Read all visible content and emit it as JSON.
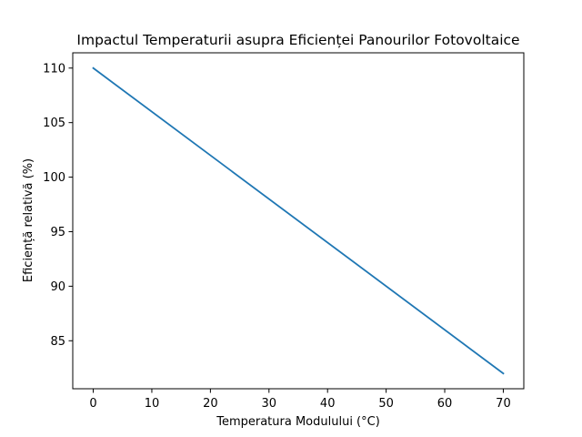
{
  "chart_data": {
    "type": "line",
    "title": "Impactul Temperaturii asupra Eficienței Panourilor Fotovoltaice",
    "xlabel": "Temperatura Modulului (°C)",
    "ylabel": "Eficiență relativă (%)",
    "x": [
      0,
      70
    ],
    "series": [
      {
        "values": [
          110,
          82
        ],
        "color": "#1f77b4"
      }
    ],
    "xlim": [
      -3.5,
      73.5
    ],
    "ylim": [
      80.6,
      111.4
    ],
    "xticks": [
      0,
      10,
      20,
      30,
      40,
      50,
      60,
      70
    ],
    "yticks": [
      85,
      90,
      95,
      100,
      105,
      110
    ],
    "grid": false,
    "legend": "none"
  }
}
